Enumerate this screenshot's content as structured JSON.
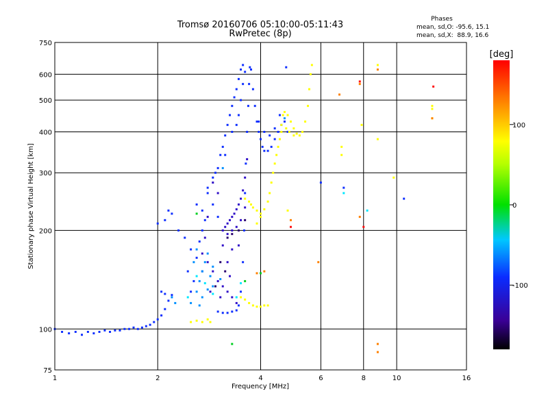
{
  "chart_data": {
    "type": "scatter",
    "title": "Tromsø 20160706 05:10:00-05:11:43",
    "subtitle": "RwPretec (8p)",
    "xlabel": "Frequency [MHz]",
    "ylabel": "Stationary phase Virtual Height [km]",
    "xscale": "log",
    "yscale": "log",
    "xlim": [
      1,
      16
    ],
    "ylim": [
      75,
      750
    ],
    "x_ticks": [
      1,
      2,
      4,
      6,
      8,
      10,
      16
    ],
    "x_tick_labels": [
      "1",
      "2",
      "4",
      "6",
      "8",
      "10",
      "16"
    ],
    "y_ticks": [
      75,
      100,
      200,
      300,
      400,
      500,
      600,
      750
    ],
    "y_tick_labels": [
      "75",
      "100",
      "200",
      "300",
      "400",
      "500",
      "600",
      "750"
    ],
    "grid": true,
    "info": {
      "heading": "Phases",
      "line_o": "mean, sd,O: -95.6, 15.1",
      "line_x": "mean, sd,X:  88.9, 16.6"
    },
    "colorbar": {
      "label": "[deg]",
      "range": [
        -180,
        180
      ],
      "ticks": [
        100,
        0,
        -100
      ],
      "tick_labels": [
        "100",
        "0",
        "-100"
      ]
    },
    "series": [
      {
        "phase": -100,
        "color": "#1030ff",
        "points": [
          [
            1.0,
            100
          ],
          [
            1.05,
            98
          ],
          [
            1.1,
            97
          ],
          [
            1.15,
            98
          ],
          [
            1.2,
            96
          ],
          [
            1.25,
            98
          ],
          [
            1.3,
            97
          ],
          [
            1.35,
            98
          ],
          [
            1.4,
            99
          ],
          [
            1.45,
            98
          ],
          [
            1.5,
            99
          ],
          [
            1.55,
            99
          ],
          [
            1.6,
            100
          ],
          [
            1.65,
            100
          ],
          [
            1.7,
            101
          ],
          [
            1.75,
            100
          ],
          [
            1.8,
            101
          ],
          [
            1.85,
            102
          ],
          [
            1.9,
            103
          ],
          [
            1.95,
            105
          ],
          [
            2.0,
            107
          ],
          [
            2.05,
            110
          ],
          [
            2.1,
            115
          ],
          [
            2.15,
            122
          ],
          [
            2.2,
            127
          ],
          [
            2.05,
            130
          ],
          [
            2.1,
            128
          ],
          [
            3.0,
            113
          ],
          [
            3.1,
            112
          ],
          [
            3.2,
            112
          ],
          [
            3.3,
            113
          ],
          [
            3.4,
            114
          ],
          [
            3.45,
            118
          ],
          [
            3.5,
            130
          ],
          [
            3.55,
            160
          ],
          [
            3.58,
            200
          ],
          [
            3.6,
            260
          ],
          [
            3.62,
            320
          ],
          [
            3.65,
            400
          ],
          [
            3.68,
            480
          ],
          [
            3.7,
            560
          ],
          [
            3.72,
            630
          ],
          [
            3.6,
            610
          ],
          [
            3.55,
            560
          ],
          [
            3.5,
            500
          ],
          [
            3.45,
            450
          ],
          [
            3.4,
            420
          ],
          [
            3.3,
            400
          ],
          [
            3.75,
            620
          ],
          [
            3.8,
            540
          ],
          [
            3.85,
            480
          ],
          [
            3.9,
            430
          ],
          [
            3.95,
            400
          ],
          [
            4.0,
            380
          ],
          [
            4.05,
            360
          ],
          [
            4.1,
            350
          ],
          [
            4.2,
            350
          ],
          [
            4.3,
            360
          ],
          [
            4.4,
            380
          ],
          [
            4.5,
            400
          ],
          [
            4.6,
            420
          ],
          [
            3.95,
            430
          ],
          [
            4.1,
            400
          ],
          [
            4.25,
            390
          ],
          [
            4.4,
            410
          ],
          [
            4.55,
            450
          ],
          [
            2.0,
            210
          ],
          [
            2.1,
            215
          ],
          [
            2.2,
            225
          ],
          [
            2.15,
            230
          ],
          [
            2.3,
            200
          ],
          [
            2.4,
            190
          ],
          [
            2.5,
            175
          ],
          [
            2.45,
            150
          ],
          [
            2.55,
            140
          ],
          [
            2.5,
            130
          ],
          [
            2.6,
            165
          ],
          [
            2.65,
            185
          ],
          [
            2.7,
            200
          ],
          [
            2.75,
            215
          ],
          [
            2.8,
            260
          ],
          [
            2.9,
            240
          ],
          [
            3.0,
            220
          ],
          [
            2.95,
            300
          ],
          [
            3.05,
            340
          ],
          [
            3.1,
            360
          ],
          [
            3.15,
            390
          ],
          [
            3.2,
            420
          ],
          [
            3.25,
            450
          ],
          [
            3.3,
            480
          ],
          [
            3.35,
            510
          ],
          [
            3.4,
            540
          ],
          [
            3.45,
            580
          ],
          [
            3.5,
            620
          ],
          [
            3.55,
            640
          ],
          [
            2.6,
            240
          ],
          [
            2.7,
            230
          ],
          [
            2.8,
            270
          ],
          [
            2.9,
            290
          ],
          [
            3.0,
            310
          ],
          [
            3.15,
            340
          ],
          [
            4.8,
            400
          ],
          [
            4.7,
            430
          ],
          [
            4.75,
            630
          ],
          [
            6.0,
            280
          ],
          [
            7.0,
            270
          ],
          [
            10.5,
            250
          ]
        ]
      },
      {
        "phase": -125,
        "color": "#3010c8",
        "points": [
          [
            3.1,
            200
          ],
          [
            3.15,
            205
          ],
          [
            3.2,
            210
          ],
          [
            3.25,
            215
          ],
          [
            3.3,
            220
          ],
          [
            3.35,
            225
          ],
          [
            3.4,
            232
          ],
          [
            3.45,
            240
          ],
          [
            3.5,
            250
          ],
          [
            3.55,
            265
          ],
          [
            3.6,
            290
          ],
          [
            3.65,
            330
          ],
          [
            3.2,
            195
          ],
          [
            3.3,
            200
          ],
          [
            3.4,
            205
          ],
          [
            3.5,
            215
          ],
          [
            3.6,
            235
          ],
          [
            2.7,
            170
          ],
          [
            2.8,
            160
          ],
          [
            2.9,
            150
          ],
          [
            3.0,
            140
          ],
          [
            3.1,
            135
          ],
          [
            3.2,
            130
          ],
          [
            3.3,
            125
          ],
          [
            3.4,
            120
          ],
          [
            2.9,
            280
          ],
          [
            3.0,
            260
          ],
          [
            2.8,
            220
          ],
          [
            2.7,
            150
          ],
          [
            2.85,
            130
          ],
          [
            3.05,
            125
          ],
          [
            3.25,
            145
          ],
          [
            3.45,
            180
          ],
          [
            2.75,
            190
          ],
          [
            3.1,
            180
          ],
          [
            3.2,
            160
          ],
          [
            3.3,
            175
          ]
        ]
      },
      {
        "phase": -150,
        "color": "#28006e",
        "points": [
          [
            3.2,
            190
          ],
          [
            3.3,
            195
          ],
          [
            3.45,
            200
          ],
          [
            3.6,
            215
          ],
          [
            3.05,
            160
          ],
          [
            3.15,
            150
          ],
          [
            2.95,
            135
          ]
        ]
      },
      {
        "phase": -85,
        "color": "#0090ff",
        "points": [
          [
            2.5,
            120
          ],
          [
            2.6,
            130
          ],
          [
            2.65,
            140
          ],
          [
            2.7,
            150
          ],
          [
            2.75,
            160
          ],
          [
            2.8,
            170
          ],
          [
            2.85,
            145
          ],
          [
            2.9,
            135
          ],
          [
            2.6,
            175
          ],
          [
            2.55,
            160
          ],
          [
            2.7,
            125
          ],
          [
            2.8,
            132
          ],
          [
            2.65,
            118
          ],
          [
            2.9,
            155
          ],
          [
            3.05,
            142
          ],
          [
            2.2,
            125
          ],
          [
            2.25,
            120
          ],
          [
            4.7,
            440
          ],
          [
            3.1,
            310
          ]
        ]
      },
      {
        "phase": -55,
        "color": "#00e8ff",
        "points": [
          [
            2.45,
            125
          ],
          [
            2.6,
            145
          ],
          [
            2.75,
            138
          ],
          [
            2.9,
            128
          ],
          [
            3.4,
            125
          ],
          [
            3.5,
            138
          ],
          [
            7.0,
            260
          ],
          [
            8.2,
            230
          ]
        ]
      },
      {
        "phase": 0,
        "color": "#00d020",
        "points": [
          [
            2.6,
            225
          ],
          [
            3.3,
            90
          ],
          [
            3.6,
            140
          ],
          [
            4.0,
            148
          ]
        ]
      },
      {
        "phase": 100,
        "color": "#ffff00",
        "points": [
          [
            2.5,
            105
          ],
          [
            2.6,
            106
          ],
          [
            2.7,
            105
          ],
          [
            2.8,
            107
          ],
          [
            2.85,
            105
          ],
          [
            3.5,
            125
          ],
          [
            3.6,
            123
          ],
          [
            3.7,
            120
          ],
          [
            3.8,
            118
          ],
          [
            3.9,
            117
          ],
          [
            4.0,
            117
          ],
          [
            4.1,
            118
          ],
          [
            4.2,
            118
          ],
          [
            3.8,
            235
          ],
          [
            3.9,
            230
          ],
          [
            4.0,
            225
          ],
          [
            4.1,
            232
          ],
          [
            4.2,
            245
          ],
          [
            4.25,
            260
          ],
          [
            4.3,
            280
          ],
          [
            4.35,
            300
          ],
          [
            4.4,
            320
          ],
          [
            4.45,
            340
          ],
          [
            4.5,
            360
          ],
          [
            4.55,
            380
          ],
          [
            4.6,
            420
          ],
          [
            4.65,
            450
          ],
          [
            4.7,
            460
          ],
          [
            4.8,
            450
          ],
          [
            4.9,
            430
          ],
          [
            5.0,
            410
          ],
          [
            5.1,
            395
          ],
          [
            5.2,
            390
          ],
          [
            5.3,
            400
          ],
          [
            5.4,
            430
          ],
          [
            5.5,
            480
          ],
          [
            5.55,
            540
          ],
          [
            5.6,
            600
          ],
          [
            5.65,
            640
          ],
          [
            4.6,
            400
          ],
          [
            4.75,
            410
          ],
          [
            4.85,
            400
          ],
          [
            5.0,
            390
          ],
          [
            3.6,
            250
          ],
          [
            3.7,
            245
          ],
          [
            3.75,
            240
          ],
          [
            3.9,
            210
          ],
          [
            4.0,
            220
          ],
          [
            4.8,
            230
          ],
          [
            7.9,
            420
          ],
          [
            8.8,
            380
          ],
          [
            8.8,
            640
          ],
          [
            9.8,
            290
          ],
          [
            12.7,
            480
          ],
          [
            12.7,
            470
          ],
          [
            12.7,
            440
          ],
          [
            6.9,
            360
          ],
          [
            6.9,
            340
          ]
        ]
      },
      {
        "phase": 150,
        "color": "#ff8000",
        "points": [
          [
            3.9,
            148
          ],
          [
            4.1,
            150
          ],
          [
            4.9,
            215
          ],
          [
            5.9,
            160
          ],
          [
            7.8,
            560
          ],
          [
            7.8,
            220
          ],
          [
            8.8,
            90
          ],
          [
            8.8,
            85
          ],
          [
            8.8,
            620
          ],
          [
            12.7,
            440
          ],
          [
            6.8,
            520
          ]
        ]
      },
      {
        "phase": 175,
        "color": "#ff1010",
        "points": [
          [
            4.9,
            205
          ],
          [
            7.8,
            570
          ],
          [
            8.0,
            205
          ],
          [
            12.8,
            550
          ]
        ]
      }
    ]
  }
}
